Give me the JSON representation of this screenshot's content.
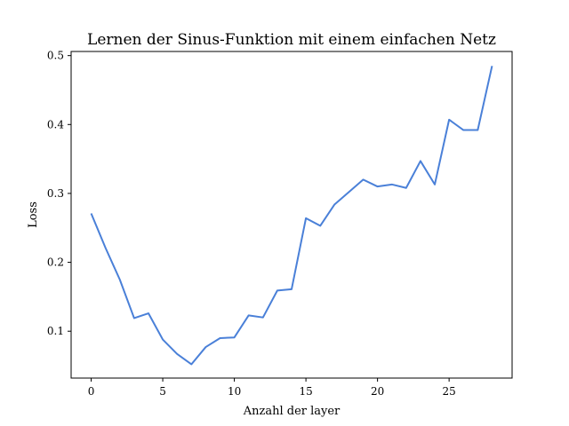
{
  "chart_data": {
    "type": "line",
    "title": "Lernen der Sinus-Funktion mit einem einfachen Netz",
    "xlabel": "Anzahl der layer",
    "ylabel": "Loss",
    "xlim": [
      -1.4,
      29.4
    ],
    "ylim": [
      0.032,
      0.506
    ],
    "xticks": [
      0,
      5,
      10,
      15,
      20,
      25
    ],
    "yticks": [
      0.1,
      0.2,
      0.3,
      0.4,
      0.5
    ],
    "grid": false,
    "series": [
      {
        "color": "#4a80d8",
        "x": [
          0,
          1,
          2,
          3,
          4,
          5,
          6,
          7,
          8,
          9,
          10,
          11,
          12,
          13,
          14,
          15,
          16,
          17,
          18,
          19,
          20,
          21,
          22,
          23,
          24,
          25,
          26,
          27,
          28
        ],
        "y": [
          0.271,
          0.221,
          0.175,
          0.119,
          0.126,
          0.088,
          0.067,
          0.052,
          0.077,
          0.09,
          0.091,
          0.123,
          0.12,
          0.159,
          0.161,
          0.264,
          0.253,
          0.284,
          0.302,
          0.32,
          0.31,
          0.313,
          0.308,
          0.347,
          0.313,
          0.407,
          0.392,
          0.392,
          0.485
        ]
      }
    ]
  }
}
